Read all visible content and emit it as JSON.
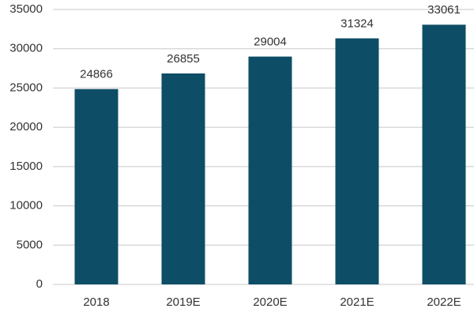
{
  "chart_data": {
    "type": "bar",
    "categories": [
      "2018",
      "2019E",
      "2020E",
      "2021E",
      "2022E"
    ],
    "values": [
      24866,
      26855,
      29004,
      31324,
      33061
    ],
    "color": "#0e4d66",
    "ylim": [
      0,
      35000
    ],
    "yticks": [
      0,
      5000,
      10000,
      15000,
      20000,
      25000,
      30000,
      35000
    ],
    "grid": true
  }
}
